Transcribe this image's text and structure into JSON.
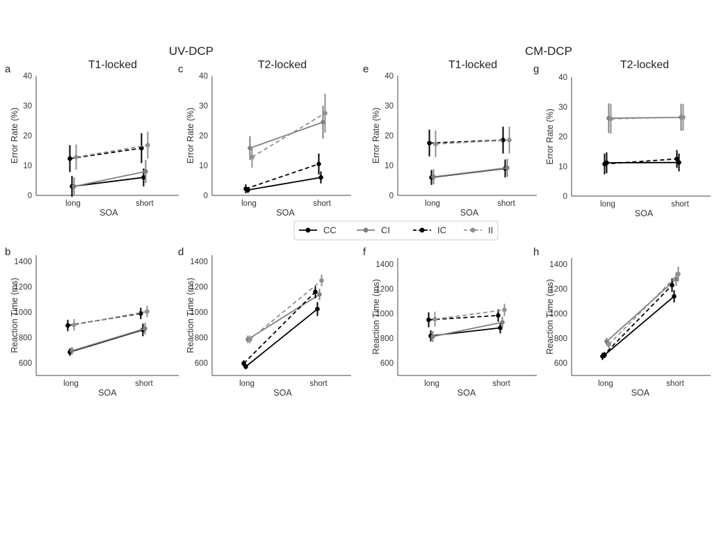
{
  "figure": {
    "section_titles": [
      "UV-DCP",
      "CM-DCP"
    ]
  },
  "legend": {
    "entries": [
      {
        "label": "CC",
        "color": "#000000",
        "dash": "solid"
      },
      {
        "label": "CI",
        "color": "#808080",
        "dash": "solid"
      },
      {
        "label": "IC",
        "color": "#000000",
        "dash": "dashed"
      },
      {
        "label": "II",
        "color": "#909090",
        "dash": "dashed"
      }
    ]
  },
  "chart_data": [
    {
      "type": "line",
      "letter": "a",
      "title": "T1-locked",
      "xlabel": "SOA",
      "ylabel": "Error Rate (%)",
      "categories": [
        "long",
        "short"
      ],
      "ylim": [
        0,
        40
      ],
      "yticks": [
        0,
        10,
        20,
        30,
        40
      ],
      "series": [
        {
          "name": "CC",
          "values": [
            3.0,
            6.0
          ],
          "err": [
            3.5,
            3.0
          ]
        },
        {
          "name": "CI",
          "values": [
            3.0,
            8.0
          ],
          "err": [
            3.0,
            3.8
          ]
        },
        {
          "name": "IC",
          "values": [
            12.3,
            15.8
          ],
          "err": [
            4.5,
            5.0
          ]
        },
        {
          "name": "II",
          "values": [
            12.8,
            16.8
          ],
          "err": [
            4.2,
            4.5
          ]
        }
      ]
    },
    {
      "type": "line",
      "letter": "c",
      "title": "T2-locked",
      "xlabel": "SOA",
      "ylabel": "Error Rate (%)",
      "categories": [
        "long",
        "short"
      ],
      "ylim": [
        0,
        40
      ],
      "yticks": [
        0,
        10,
        20,
        30,
        40
      ],
      "series": [
        {
          "name": "CC",
          "values": [
            1.8,
            6.0
          ],
          "err": [
            1.0,
            2.0
          ]
        },
        {
          "name": "CI",
          "values": [
            15.8,
            24.5
          ],
          "err": [
            4.0,
            5.5
          ]
        },
        {
          "name": "IC",
          "values": [
            2.2,
            10.5
          ],
          "err": [
            1.5,
            3.5
          ]
        },
        {
          "name": "II",
          "values": [
            12.8,
            27.5
          ],
          "err": [
            3.5,
            6.5
          ]
        }
      ]
    },
    {
      "type": "line",
      "letter": "e",
      "title": "T1-locked",
      "xlabel": "SOA",
      "ylabel": "Error Rate (%)",
      "categories": [
        "long",
        "short"
      ],
      "ylim": [
        0,
        40
      ],
      "yticks": [
        0,
        10,
        20,
        30,
        40
      ],
      "series": [
        {
          "name": "CC",
          "values": [
            6.0,
            9.0
          ],
          "err": [
            2.5,
            3.0
          ]
        },
        {
          "name": "CI",
          "values": [
            6.2,
            9.2
          ],
          "err": [
            2.5,
            3.0
          ]
        },
        {
          "name": "IC",
          "values": [
            17.5,
            18.5
          ],
          "err": [
            4.5,
            4.5
          ]
        },
        {
          "name": "II",
          "values": [
            17.2,
            18.5
          ],
          "err": [
            4.5,
            4.5
          ]
        }
      ]
    },
    {
      "type": "line",
      "letter": "g",
      "title": "T2-locked",
      "xlabel": "SOA",
      "ylabel": "Error Rate (%)",
      "categories": [
        "long",
        "short"
      ],
      "ylim": [
        0,
        40
      ],
      "yticks": [
        0,
        10,
        20,
        30,
        40
      ],
      "series": [
        {
          "name": "CC",
          "values": [
            11.2,
            11.3
          ],
          "err": [
            3.5,
            3.0
          ]
        },
        {
          "name": "CI",
          "values": [
            26.2,
            26.5
          ],
          "err": [
            5.0,
            4.5
          ]
        },
        {
          "name": "IC",
          "values": [
            10.8,
            12.5
          ],
          "err": [
            3.5,
            3.0
          ]
        },
        {
          "name": "II",
          "values": [
            26.0,
            26.5
          ],
          "err": [
            5.0,
            4.5
          ]
        }
      ]
    },
    {
      "type": "line",
      "letter": "b",
      "title": "",
      "xlabel": "SOA",
      "ylabel": "Reaction Time (ms)",
      "categories": [
        "long",
        "short"
      ],
      "ylim": [
        500,
        1450
      ],
      "yticks": [
        600,
        800,
        1000,
        1200,
        1400
      ],
      "series": [
        {
          "name": "CC",
          "values": [
            685,
            860
          ],
          "err": [
            30,
            50
          ]
        },
        {
          "name": "CI",
          "values": [
            695,
            870
          ],
          "err": [
            30,
            45
          ]
        },
        {
          "name": "IC",
          "values": [
            895,
            990
          ],
          "err": [
            45,
            45
          ]
        },
        {
          "name": "II",
          "values": [
            900,
            1005
          ],
          "err": [
            45,
            45
          ]
        }
      ]
    },
    {
      "type": "line",
      "letter": "d",
      "title": "",
      "xlabel": "SOA",
      "ylabel": "Reaction Time (ms)",
      "categories": [
        "long",
        "short"
      ],
      "ylim": [
        500,
        1450
      ],
      "yticks": [
        600,
        800,
        1000,
        1200,
        1400
      ],
      "series": [
        {
          "name": "CC",
          "values": [
            570,
            1025
          ],
          "err": [
            20,
            55
          ]
        },
        {
          "name": "CI",
          "values": [
            785,
            1140
          ],
          "err": [
            30,
            45
          ]
        },
        {
          "name": "IC",
          "values": [
            595,
            1160
          ],
          "err": [
            25,
            50
          ]
        },
        {
          "name": "II",
          "values": [
            785,
            1250
          ],
          "err": [
            30,
            45
          ]
        }
      ]
    },
    {
      "type": "line",
      "letter": "f",
      "title": "",
      "xlabel": "SOA",
      "ylabel": "Reaction Time (ms)",
      "categories": [
        "long",
        "short"
      ],
      "ylim": [
        500,
        1450
      ],
      "yticks": [
        600,
        800,
        1000,
        1200,
        1400
      ],
      "series": [
        {
          "name": "CC",
          "values": [
            820,
            885
          ],
          "err": [
            45,
            45
          ]
        },
        {
          "name": "CI",
          "values": [
            815,
            930
          ],
          "err": [
            45,
            45
          ]
        },
        {
          "name": "IC",
          "values": [
            950,
            985
          ],
          "err": [
            60,
            50
          ]
        },
        {
          "name": "II",
          "values": [
            955,
            1030
          ],
          "err": [
            60,
            50
          ]
        }
      ]
    },
    {
      "type": "line",
      "letter": "h",
      "title": "",
      "xlabel": "SOA",
      "ylabel": "Reaction Time (ms)",
      "categories": [
        "long",
        "short"
      ],
      "ylim": [
        500,
        1450
      ],
      "yticks": [
        600,
        800,
        1000,
        1200,
        1400
      ],
      "series": [
        {
          "name": "CC",
          "values": [
            665,
            1140
          ],
          "err": [
            25,
            50
          ]
        },
        {
          "name": "CI",
          "values": [
            775,
            1280
          ],
          "err": [
            30,
            55
          ]
        },
        {
          "name": "IC",
          "values": [
            655,
            1230
          ],
          "err": [
            30,
            55
          ]
        },
        {
          "name": "II",
          "values": [
            750,
            1320
          ],
          "err": [
            30,
            60
          ]
        }
      ]
    }
  ]
}
